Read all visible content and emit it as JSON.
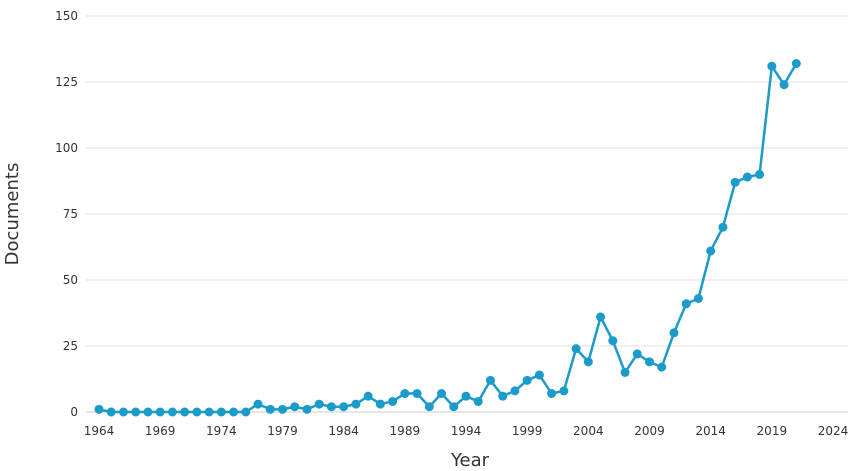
{
  "chart_data": {
    "type": "line",
    "xlabel": "Year",
    "ylabel": "Documents",
    "xlim": [
      1964,
      2024
    ],
    "ylim": [
      0,
      150
    ],
    "x_ticks": [
      1964,
      1969,
      1974,
      1979,
      1984,
      1989,
      1994,
      1999,
      2004,
      2009,
      2014,
      2019,
      2024
    ],
    "y_ticks": [
      0,
      25,
      50,
      75,
      100,
      125,
      150
    ],
    "grid": "horizontal",
    "legend": "none",
    "color": "#1a9bc9",
    "series": [
      {
        "x": [
          1964,
          1965,
          1966,
          1967,
          1968,
          1969,
          1970,
          1971,
          1972,
          1973,
          1974,
          1975,
          1976,
          1977,
          1978,
          1979,
          1980,
          1981,
          1982,
          1983,
          1984,
          1985,
          1986,
          1987,
          1988,
          1989,
          1990,
          1991,
          1992,
          1993,
          1994,
          1995,
          1996,
          1997,
          1998,
          1999,
          2000,
          2001,
          2002,
          2003,
          2004,
          2005,
          2006,
          2007,
          2008,
          2009,
          2010,
          2011,
          2012,
          2013,
          2014,
          2015,
          2016,
          2017,
          2018,
          2019,
          2020,
          2021
        ],
        "values": [
          1,
          0,
          0,
          0,
          0,
          0,
          0,
          0,
          0,
          0,
          0,
          0,
          0,
          3,
          1,
          1,
          2,
          1,
          3,
          2,
          2,
          3,
          6,
          3,
          4,
          7,
          7,
          2,
          7,
          2,
          6,
          4,
          12,
          6,
          8,
          12,
          14,
          7,
          8,
          24,
          19,
          36,
          27,
          15,
          22,
          19,
          17,
          30,
          41,
          43,
          61,
          70,
          87,
          89,
          90,
          131,
          124,
          132
        ]
      }
    ]
  }
}
